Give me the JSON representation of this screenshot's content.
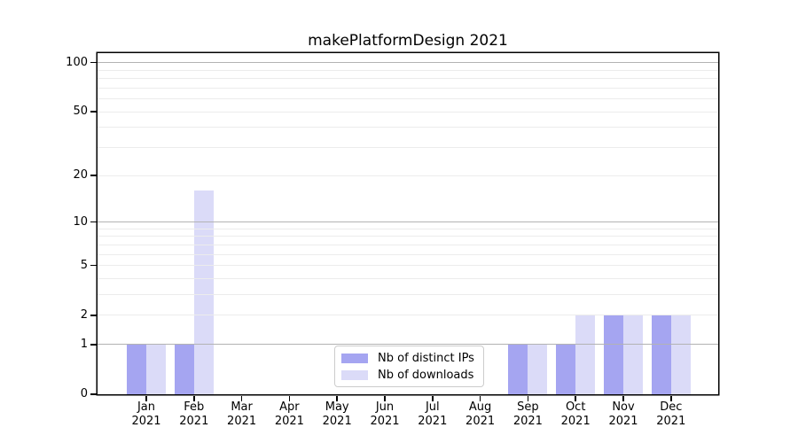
{
  "chart_data": {
    "type": "bar",
    "title": "makePlatformDesign 2021",
    "x_tick_labels": [
      [
        "Jan",
        "2021"
      ],
      [
        "Feb",
        "2021"
      ],
      [
        "Mar",
        "2021"
      ],
      [
        "Apr",
        "2021"
      ],
      [
        "May",
        "2021"
      ],
      [
        "Jun",
        "2021"
      ],
      [
        "Jul",
        "2021"
      ],
      [
        "Aug",
        "2021"
      ],
      [
        "Sep",
        "2021"
      ],
      [
        "Oct",
        "2021"
      ],
      [
        "Nov",
        "2021"
      ],
      [
        "Dec",
        "2021"
      ]
    ],
    "series": [
      {
        "name": "Nb of distinct IPs",
        "color": "#a5a5f1",
        "values": [
          1,
          1,
          0,
          0,
          0,
          0,
          0,
          0,
          1,
          1,
          2,
          2
        ]
      },
      {
        "name": "Nb of downloads",
        "color": "#dbdbf8",
        "values": [
          1,
          16,
          0,
          0,
          0,
          0,
          0,
          0,
          1,
          2,
          2,
          2
        ]
      }
    ],
    "y_axis": {
      "scale": "log1p",
      "tick_values": [
        0,
        1,
        2,
        5,
        10,
        20,
        50,
        100
      ],
      "major_gridlines": [
        1,
        10,
        100
      ],
      "minor_gridlines": [
        2,
        3,
        4,
        5,
        6,
        7,
        8,
        9,
        20,
        30,
        40,
        50,
        60,
        70,
        80,
        90
      ],
      "ylim": [
        0,
        115
      ]
    },
    "legend": {
      "position": "lower center",
      "entries": [
        "Nb of distinct IPs",
        "Nb of downloads"
      ]
    },
    "colors": {
      "major_grid": "#b3b3b3",
      "minor_grid": "#ececec",
      "axis": "#000000",
      "background": "#ffffff"
    }
  }
}
